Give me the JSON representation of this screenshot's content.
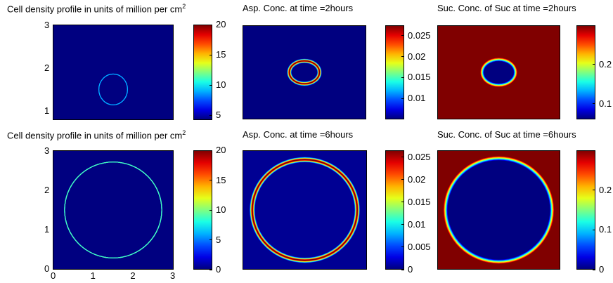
{
  "chart_data": [
    {
      "type": "heatmap",
      "title": "Cell density profile in units of million per cm",
      "title_superscript": "2",
      "field": "ring",
      "ring_radius": 0.36,
      "ring_width": 0.012,
      "inside_value": 0,
      "outside_value": 0,
      "peak_value": 9,
      "center": [
        1.5,
        1.5
      ],
      "xlim": [
        0,
        3
      ],
      "ylim": [
        0.8,
        3
      ],
      "yticks": [
        "1",
        "2",
        "3"
      ],
      "xticks": [],
      "colorbar": {
        "range": [
          4.2,
          20
        ],
        "ticks": [
          "5",
          "10",
          "15",
          "20"
        ]
      }
    },
    {
      "type": "heatmap",
      "title": "Asp. Conc. at time =2hours",
      "field": "ring",
      "ring_radius": 0.37,
      "ring_width": 0.07,
      "inside_value": 0.002,
      "outside_value": 0.002,
      "peak_value": 0.0275,
      "center": [
        1.5,
        1.5
      ],
      "colorbar": {
        "range": [
          0.005,
          0.0275
        ],
        "ticks": [
          "0.01",
          "0.015",
          "0.02",
          "0.025"
        ]
      }
    },
    {
      "type": "heatmap",
      "title": "Suc. Conc. of Suc at time =2hours",
      "field": "disk",
      "ring_radius": 0.4,
      "ring_width": 0.06,
      "inside_value": 0.06,
      "outside_value": 0.3,
      "center": [
        1.5,
        1.5
      ],
      "colorbar": {
        "range": [
          0.06,
          0.3
        ],
        "ticks": [
          "0.1",
          "0.2"
        ]
      }
    },
    {
      "type": "heatmap",
      "title": "Cell density profile in units of million per cm",
      "title_superscript": "2",
      "field": "ring",
      "ring_radius": 1.22,
      "ring_width": 0.014,
      "inside_value": 0,
      "outside_value": 0,
      "peak_value": 9,
      "center": [
        1.5,
        1.5
      ],
      "xlim": [
        0,
        3
      ],
      "ylim": [
        0,
        3
      ],
      "yticks": [
        "0",
        "1",
        "2",
        "3"
      ],
      "xticks": [
        "0",
        "1",
        "2",
        "3"
      ],
      "colorbar": {
        "range": [
          0,
          20
        ],
        "ticks": [
          "0",
          "5",
          "10",
          "15",
          "20"
        ]
      }
    },
    {
      "type": "heatmap",
      "title": "Asp. Conc. at time =6hours",
      "field": "ring",
      "ring_radius": 1.28,
      "ring_width": 0.075,
      "inside_value": 0.0005,
      "outside_value": 0.0005,
      "peak_value": 0.0265,
      "center": [
        1.5,
        1.5
      ],
      "colorbar": {
        "range": [
          0,
          0.0265
        ],
        "ticks": [
          "0",
          "0.005",
          "0.01",
          "0.015",
          "0.02",
          "0.025"
        ]
      }
    },
    {
      "type": "heatmap",
      "title": "Suc. Conc. of Suc at time =6hours",
      "field": "disk",
      "ring_radius": 1.3,
      "ring_width": 0.07,
      "inside_value": 0,
      "outside_value": 0.3,
      "center": [
        1.5,
        1.5
      ],
      "colorbar": {
        "range": [
          0,
          0.3
        ],
        "ticks": [
          "0",
          "0.1",
          "0.2"
        ]
      }
    }
  ]
}
